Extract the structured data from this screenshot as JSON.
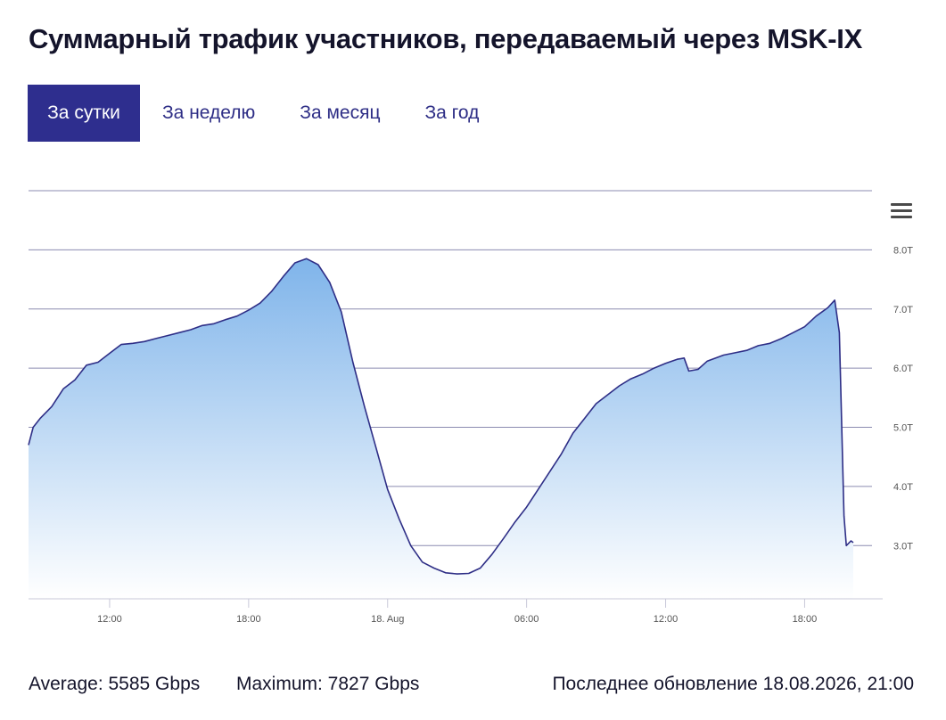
{
  "title": "Суммарный трафик участников, передаваемый через MSK-IX",
  "tabs": [
    {
      "label": "За сутки",
      "active": true
    },
    {
      "label": "За неделю",
      "active": false
    },
    {
      "label": "За месяц",
      "active": false
    },
    {
      "label": "За год",
      "active": false
    }
  ],
  "menu_icon": "hamburger-menu-icon",
  "footer": {
    "average": "Average: 5585 Gbps",
    "maximum": "Maximum: 7827 Gbps",
    "updated": "Последнее обновление 18.08.2026, 21:00"
  },
  "colors": {
    "line": "#2e2e86",
    "fill_top": "#7fb4ea",
    "fill_bottom": "#ffffff",
    "accent": "#2e2e8e"
  },
  "chart_data": {
    "type": "area",
    "title": "",
    "xlabel": "",
    "ylabel": "",
    "unit": "Tbps",
    "grid": true,
    "legend": "none",
    "y_ticks": [
      {
        "value": 3,
        "label": "3.0T"
      },
      {
        "value": 4,
        "label": "4.0T"
      },
      {
        "value": 5,
        "label": "5.0T"
      },
      {
        "value": 6,
        "label": "6.0T"
      },
      {
        "value": 7,
        "label": "7.0T"
      },
      {
        "value": 8,
        "label": "8.0T"
      }
    ],
    "x_ticks": [
      {
        "hour": 12,
        "label": "12:00"
      },
      {
        "hour": 18,
        "label": "18:00"
      },
      {
        "hour": 24,
        "label": "18. Aug"
      },
      {
        "hour": 30,
        "label": "06:00"
      },
      {
        "hour": 36,
        "label": "12:00"
      },
      {
        "hour": 42,
        "label": "18:00"
      }
    ],
    "xlim": [
      8.5,
      44.6
    ],
    "ylim": [
      2.1,
      9.0
    ],
    "series": [
      {
        "values": [
          [
            8.5,
            4.7
          ],
          [
            8.7,
            5.0
          ],
          [
            9.0,
            5.15
          ],
          [
            9.5,
            5.35
          ],
          [
            10.0,
            5.65
          ],
          [
            10.5,
            5.8
          ],
          [
            11.0,
            6.05
          ],
          [
            11.5,
            6.1
          ],
          [
            12.0,
            6.25
          ],
          [
            12.5,
            6.4
          ],
          [
            13.0,
            6.42
          ],
          [
            13.5,
            6.45
          ],
          [
            14.0,
            6.5
          ],
          [
            14.5,
            6.55
          ],
          [
            15.0,
            6.6
          ],
          [
            15.5,
            6.65
          ],
          [
            16.0,
            6.72
          ],
          [
            16.5,
            6.75
          ],
          [
            17.0,
            6.82
          ],
          [
            17.5,
            6.88
          ],
          [
            18.0,
            6.98
          ],
          [
            18.5,
            7.1
          ],
          [
            19.0,
            7.3
          ],
          [
            19.5,
            7.55
          ],
          [
            20.0,
            7.78
          ],
          [
            20.5,
            7.85
          ],
          [
            21.0,
            7.75
          ],
          [
            21.5,
            7.45
          ],
          [
            22.0,
            6.95
          ],
          [
            22.5,
            6.1
          ],
          [
            23.0,
            5.35
          ],
          [
            23.5,
            4.65
          ],
          [
            24.0,
            3.95
          ],
          [
            24.5,
            3.45
          ],
          [
            25.0,
            3.0
          ],
          [
            25.5,
            2.72
          ],
          [
            26.0,
            2.62
          ],
          [
            26.5,
            2.54
          ],
          [
            27.0,
            2.52
          ],
          [
            27.5,
            2.53
          ],
          [
            28.0,
            2.62
          ],
          [
            28.5,
            2.85
          ],
          [
            29.0,
            3.12
          ],
          [
            29.5,
            3.4
          ],
          [
            30.0,
            3.65
          ],
          [
            30.5,
            3.95
          ],
          [
            31.0,
            4.25
          ],
          [
            31.5,
            4.55
          ],
          [
            32.0,
            4.9
          ],
          [
            32.5,
            5.15
          ],
          [
            33.0,
            5.4
          ],
          [
            33.5,
            5.55
          ],
          [
            34.0,
            5.7
          ],
          [
            34.5,
            5.82
          ],
          [
            35.0,
            5.9
          ],
          [
            35.5,
            6.0
          ],
          [
            36.0,
            6.08
          ],
          [
            36.5,
            6.15
          ],
          [
            36.8,
            6.17
          ],
          [
            37.0,
            5.95
          ],
          [
            37.4,
            5.98
          ],
          [
            37.8,
            6.12
          ],
          [
            38.5,
            6.22
          ],
          [
            39.0,
            6.26
          ],
          [
            39.5,
            6.3
          ],
          [
            40.0,
            6.38
          ],
          [
            40.5,
            6.42
          ],
          [
            41.0,
            6.5
          ],
          [
            41.5,
            6.6
          ],
          [
            42.0,
            6.7
          ],
          [
            42.5,
            6.88
          ],
          [
            43.0,
            7.02
          ],
          [
            43.3,
            7.15
          ],
          [
            43.5,
            6.6
          ],
          [
            43.7,
            3.5
          ],
          [
            43.8,
            3.0
          ],
          [
            44.0,
            3.08
          ],
          [
            44.1,
            3.05
          ]
        ]
      }
    ]
  }
}
